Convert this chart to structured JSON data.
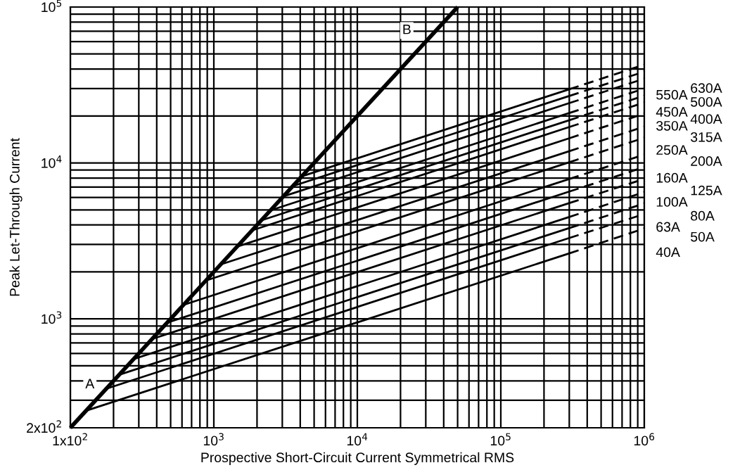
{
  "chart_data": {
    "type": "line",
    "xlabel": "Prospective Short-Circuit Current Symmetrical RMS",
    "ylabel": "Peak Let-Through Current",
    "log": "xy",
    "grid": true,
    "xlim": [
      100,
      1000000
    ],
    "ylim": [
      200,
      100000
    ],
    "xticks": [
      {
        "value": 100,
        "label": "1x10$^{2}$"
      },
      {
        "value": 1000,
        "label": "10$^{3}$"
      },
      {
        "value": 10000,
        "label": "10$^{4}$"
      },
      {
        "value": 100000,
        "label": "10$^{5}$"
      },
      {
        "value": 1000000,
        "label": "10$^{6}$"
      }
    ],
    "yticks": [
      {
        "value": 200,
        "label": "2x10$^{2}$"
      },
      {
        "value": 1000,
        "label": "10$^{3}$"
      },
      {
        "value": 10000,
        "label": "10$^{4}$"
      },
      {
        "value": 100000,
        "label": "10$^{5}$"
      }
    ],
    "annotations": [
      "A",
      "B"
    ],
    "series": [
      {
        "color": "#000000",
        "x": [
          100,
          50000
        ],
        "values": [
          200,
          100000
        ]
      },
      {
        "name": "630A",
        "color": "#000000",
        "x": [
          4100,
          300000
        ],
        "values": [
          8200,
          29700
        ]
      },
      {
        "color": "#000000",
        "line_style": "dashed",
        "x": [
          300000,
          1000000
        ],
        "values": [
          29700,
          42700
        ]
      },
      {
        "name": "550A",
        "color": "#000000",
        "x": [
          3550,
          300000
        ],
        "values": [
          7100,
          26900
        ]
      },
      {
        "color": "#000000",
        "line_style": "dashed",
        "x": [
          300000,
          1000000
        ],
        "values": [
          26900,
          38500
        ]
      },
      {
        "name": "500A",
        "color": "#000000",
        "x": [
          3050,
          300000
        ],
        "values": [
          6100,
          24200
        ]
      },
      {
        "color": "#000000",
        "line_style": "dashed",
        "x": [
          300000,
          1000000
        ],
        "values": [
          24200,
          34700
        ]
      },
      {
        "name": "450A",
        "color": "#000000",
        "x": [
          2480,
          300000
        ],
        "values": [
          4960,
          20900
        ]
      },
      {
        "color": "#000000",
        "line_style": "dashed",
        "x": [
          300000,
          1000000
        ],
        "values": [
          20900,
          30000
        ]
      },
      {
        "name": "400A",
        "color": "#000000",
        "x": [
          2140,
          300000
        ],
        "values": [
          4280,
          18800
        ]
      },
      {
        "color": "#000000",
        "line_style": "dashed",
        "x": [
          300000,
          1000000
        ],
        "values": [
          18800,
          27000
        ]
      },
      {
        "name": "350A",
        "color": "#000000",
        "x": [
          1840,
          300000
        ],
        "values": [
          3690,
          17000
        ]
      },
      {
        "color": "#000000",
        "line_style": "dashed",
        "x": [
          300000,
          1000000
        ],
        "values": [
          17000,
          24400
        ]
      },
      {
        "name": "315A",
        "color": "#000000",
        "x": [
          1460,
          300000
        ],
        "values": [
          2910,
          14400
        ]
      },
      {
        "color": "#000000",
        "line_style": "dashed",
        "x": [
          300000,
          1000000
        ],
        "values": [
          14400,
          20700
        ]
      },
      {
        "name": "250A",
        "color": "#000000",
        "x": [
          1110,
          300000
        ],
        "values": [
          2230,
          11900
        ]
      },
      {
        "color": "#000000",
        "line_style": "dashed",
        "x": [
          300000,
          1000000
        ],
        "values": [
          11900,
          17100
        ]
      },
      {
        "name": "200A",
        "color": "#000000",
        "x": [
          880,
          300000
        ],
        "values": [
          1760,
          10100
        ]
      },
      {
        "color": "#000000",
        "line_style": "dashed",
        "x": [
          300000,
          1000000
        ],
        "values": [
          10100,
          14500
        ]
      },
      {
        "name": "160A",
        "color": "#000000",
        "x": [
          617,
          300000
        ],
        "values": [
          1230,
          7890
        ]
      },
      {
        "color": "#000000",
        "line_style": "dashed",
        "x": [
          300000,
          1000000
        ],
        "values": [
          7890,
          11300
        ]
      },
      {
        "name": "125A",
        "color": "#000000",
        "x": [
          472,
          300000
        ],
        "values": [
          944,
          6550
        ]
      },
      {
        "color": "#000000",
        "line_style": "dashed",
        "x": [
          300000,
          1000000
        ],
        "values": [
          6550,
          9400
        ]
      },
      {
        "name": "100A",
        "color": "#000000",
        "x": [
          372,
          300000
        ],
        "values": [
          743,
          5530
        ]
      },
      {
        "color": "#000000",
        "line_style": "dashed",
        "x": [
          300000,
          1000000
        ],
        "values": [
          5530,
          7900
        ]
      },
      {
        "name": "80A",
        "color": "#000000",
        "x": [
          276,
          300000
        ],
        "values": [
          552,
          4500
        ]
      },
      {
        "color": "#000000",
        "line_style": "dashed",
        "x": [
          300000,
          1000000
        ],
        "values": [
          4500,
          6500
        ]
      },
      {
        "name": "63A",
        "color": "#000000",
        "x": [
          219,
          300000
        ],
        "values": [
          438,
          3820
        ]
      },
      {
        "color": "#000000",
        "line_style": "dashed",
        "x": [
          300000,
          1000000
        ],
        "values": [
          3820,
          5500
        ]
      },
      {
        "name": "50A",
        "color": "#000000",
        "x": [
          178,
          300000
        ],
        "values": [
          356,
          3300
        ]
      },
      {
        "color": "#000000",
        "line_style": "dashed",
        "x": [
          300000,
          1000000
        ],
        "values": [
          3300,
          4700
        ]
      },
      {
        "name": "40A",
        "color": "#000000",
        "x": [
          128,
          300000
        ],
        "values": [
          257,
          2630
        ]
      },
      {
        "color": "#000000",
        "line_style": "dashed",
        "x": [
          300000,
          1000000
        ],
        "values": [
          2630,
          3800
        ]
      }
    ]
  }
}
